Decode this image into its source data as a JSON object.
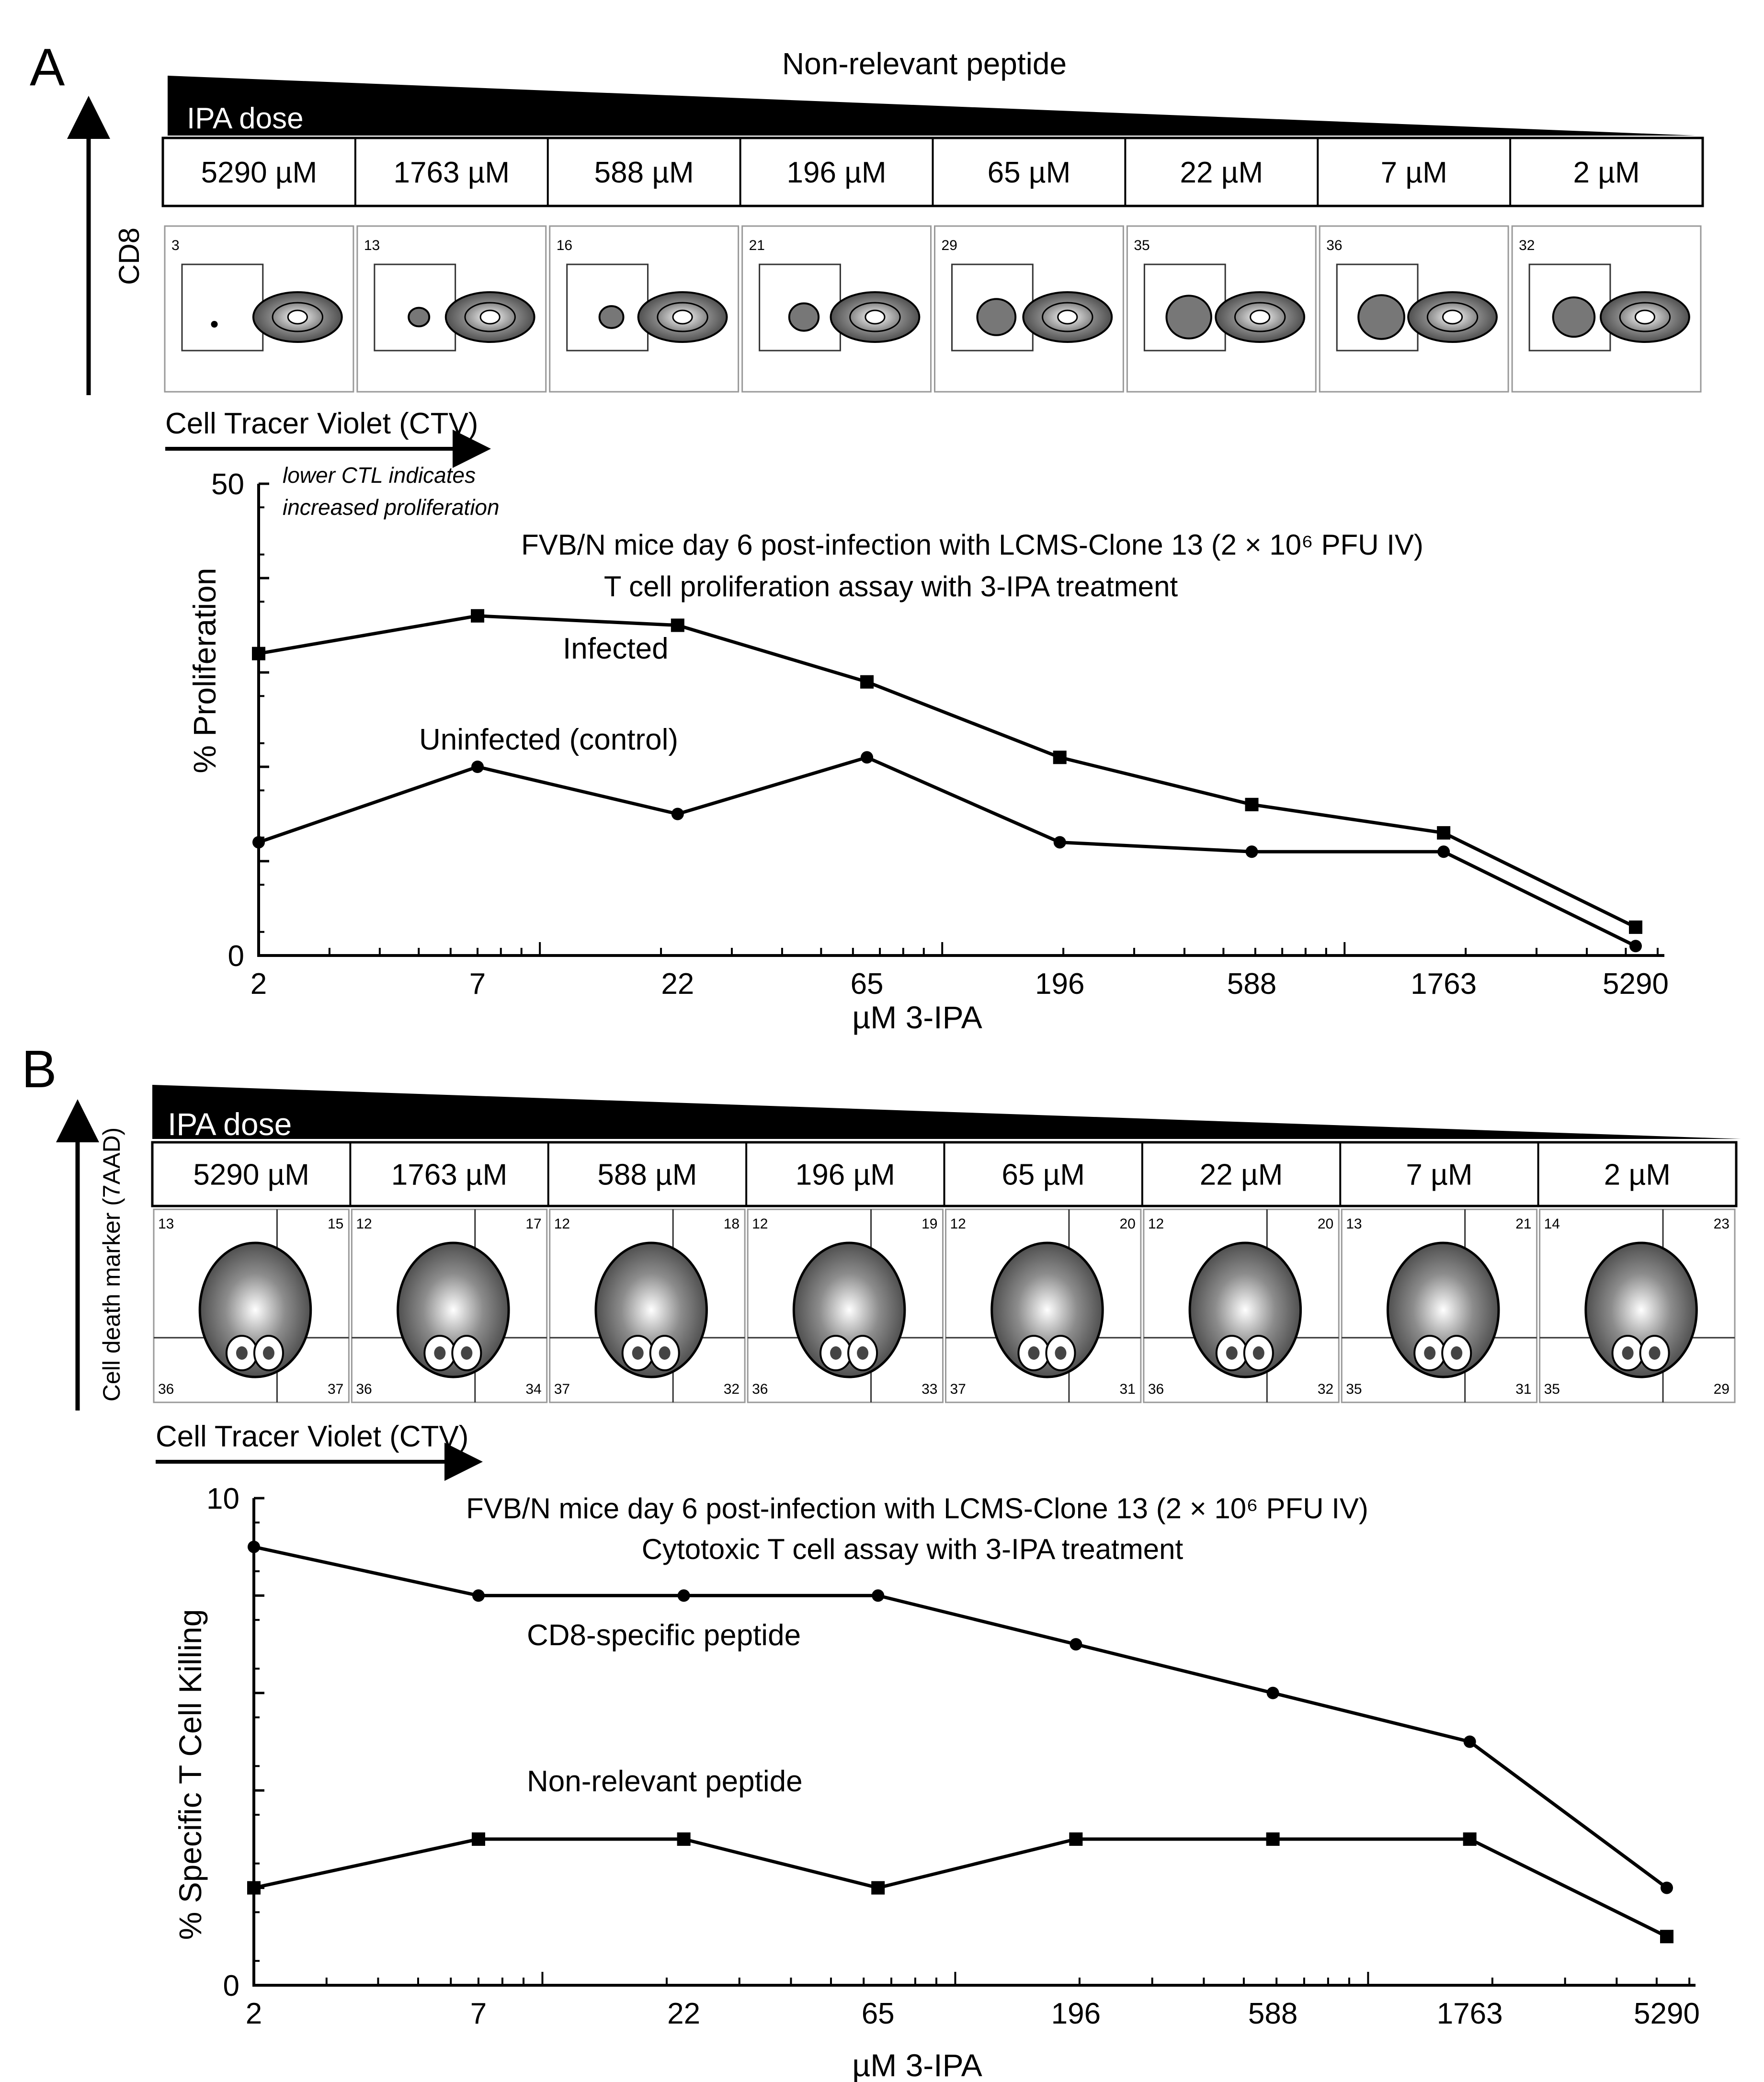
{
  "panel_a": {
    "label": "A",
    "peptide_label": "Non-relevant peptide",
    "dose_label": "IPA dose",
    "doses": [
      "5290 µM",
      "1763 µM",
      "588 µM",
      "196 µM",
      "65 µM",
      "22 µM",
      "7 µM",
      "2 µM"
    ],
    "flow_values": [
      "3",
      "13",
      "16",
      "21",
      "29",
      "35",
      "36",
      "32"
    ],
    "y_marker": "CD8",
    "x_marker": "Cell Tracer Violet (CTV)",
    "note_line1": "lower CTL indicates",
    "note_line2": "increased proliferation"
  },
  "panel_b": {
    "label": "B",
    "dose_label": "IPA dose",
    "doses": [
      "5290 µM",
      "1763 µM",
      "588 µM",
      "196 µM",
      "65 µM",
      "22 µM",
      "7 µM",
      "2 µM"
    ],
    "quadrants": [
      {
        "tl": "13",
        "tr": "15",
        "bl": "36",
        "br": "37"
      },
      {
        "tl": "12",
        "tr": "17",
        "bl": "36",
        "br": "34"
      },
      {
        "tl": "12",
        "tr": "18",
        "bl": "37",
        "br": "32"
      },
      {
        "tl": "12",
        "tr": "19",
        "bl": "36",
        "br": "33"
      },
      {
        "tl": "12",
        "tr": "20",
        "bl": "37",
        "br": "31"
      },
      {
        "tl": "12",
        "tr": "20",
        "bl": "36",
        "br": "32"
      },
      {
        "tl": "13",
        "tr": "21",
        "bl": "35",
        "br": "31"
      },
      {
        "tl": "14",
        "tr": "23",
        "bl": "35",
        "br": "29"
      }
    ],
    "y_marker": "Cell death marker (7AAD)",
    "x_marker": "Cell Tracer Violet (CTV)"
  },
  "chart_data": [
    {
      "type": "line",
      "title_line1": "FVB/N mice day 6 post-infection with LCMS-Clone 13 (2 × 10⁶ PFU IV)",
      "title_line2": "T cell proliferation assay with 3-IPA treatment",
      "xlabel": "µM 3-IPA",
      "ylabel": "% Proliferation",
      "x_scale": "log",
      "categories": [
        "2",
        "7",
        "22",
        "65",
        "196",
        "588",
        "1763",
        "5290"
      ],
      "ylim": [
        0,
        50
      ],
      "y_ticks": [
        "0",
        "50"
      ],
      "series": [
        {
          "name": "Infected",
          "marker": "square",
          "values": [
            32,
            36,
            35,
            29,
            21,
            16,
            13,
            3
          ]
        },
        {
          "name": "Uninfected (control)",
          "marker": "circle",
          "values": [
            12,
            20,
            15,
            21,
            12,
            11,
            11,
            1
          ]
        }
      ]
    },
    {
      "type": "line",
      "title_line1": "FVB/N mice day 6 post-infection with LCMS-Clone 13 (2 × 10⁶ PFU IV)",
      "title_line2": "Cytotoxic T cell assay with 3-IPA treatment",
      "xlabel": "µM 3-IPA",
      "ylabel": "% Specific T Cell Killing",
      "x_scale": "log",
      "categories": [
        "2",
        "7",
        "22",
        "65",
        "196",
        "588",
        "1763",
        "5290"
      ],
      "ylim": [
        0,
        10
      ],
      "y_ticks": [
        "0",
        "10"
      ],
      "series": [
        {
          "name": "CD8-specific peptide",
          "marker": "circle",
          "values": [
            9,
            8,
            8,
            8,
            7,
            6,
            5,
            2
          ]
        },
        {
          "name": "Non-relevant peptide",
          "marker": "square",
          "values": [
            2,
            3,
            3,
            2,
            3,
            3,
            3,
            1
          ]
        }
      ]
    }
  ]
}
